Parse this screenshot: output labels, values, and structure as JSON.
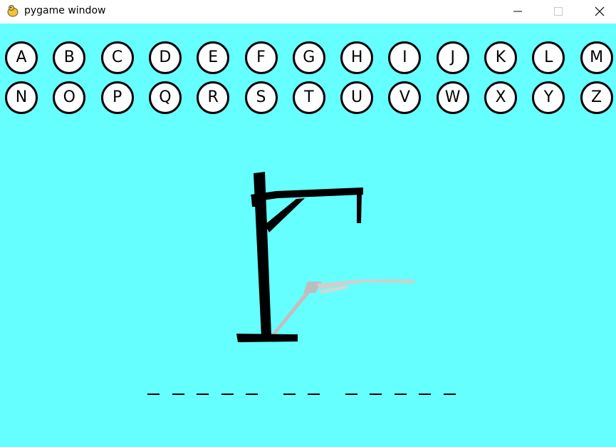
{
  "window": {
    "title": "pygame window"
  },
  "colors": {
    "background": "#66ffff",
    "button_fill": "#ffffff",
    "button_border": "#000000"
  },
  "icons": {
    "app": "pygame-snake-icon",
    "minimize": "minimize-icon",
    "maximize": "maximize-icon",
    "close": "close-icon"
  },
  "letters": [
    "A",
    "B",
    "C",
    "D",
    "E",
    "F",
    "G",
    "H",
    "I",
    "J",
    "K",
    "L",
    "M",
    "N",
    "O",
    "P",
    "Q",
    "R",
    "S",
    "T",
    "U",
    "V",
    "W",
    "X",
    "Y",
    "Z"
  ],
  "hangman_stage": "gallows-only",
  "word_pattern": "_____ __ _____"
}
